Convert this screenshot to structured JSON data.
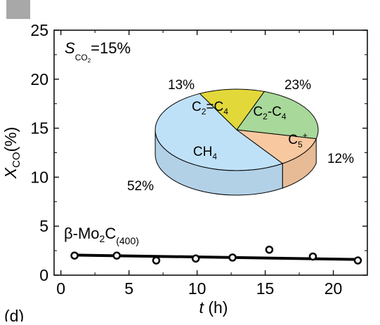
{
  "panel_label": "(d)",
  "chart_data": {
    "type": "scatter",
    "xlabel": {
      "var": "t",
      "unit": "(h)"
    },
    "ylabel": {
      "var": "X",
      "sub": "CO",
      "unit": "(%)"
    },
    "xlim": [
      -0.5,
      22.5
    ],
    "ylim": [
      0,
      25
    ],
    "xticks": [
      0,
      5,
      10,
      15,
      20
    ],
    "yticks": [
      0,
      5,
      10,
      15,
      20,
      25
    ],
    "xtick_labels": [
      "0",
      "5",
      "10",
      "15",
      "20"
    ],
    "ytick_labels": [
      "0",
      "5",
      "10",
      "15",
      "20",
      "25"
    ],
    "selectivity_label": {
      "var": "S",
      "sub": "CO",
      "sub2": "2",
      "text": "=15%"
    },
    "series": [
      {
        "name": "β-Mo₂C(400)",
        "label_parts": {
          "pre": "β-Mo",
          "sub": "2",
          "mid": "C",
          "sub2": "(400)"
        },
        "x": [
          1.0,
          4.1,
          7.0,
          9.9,
          12.6,
          15.3,
          18.5,
          21.8
        ],
        "y": [
          2.0,
          2.0,
          1.5,
          1.7,
          1.8,
          2.6,
          1.9,
          1.5
        ]
      }
    ],
    "trend_line": {
      "x": [
        1.0,
        21.8
      ],
      "y": [
        2.05,
        1.6
      ]
    },
    "inset_pie": {
      "slices": [
        {
          "name": "CH4",
          "label_parts": {
            "base": "CH",
            "sub": "4"
          },
          "value": 52,
          "pct_label": "52%",
          "color": "#bfe1f8"
        },
        {
          "name": "C2=C4",
          "label_parts": {
            "a": "C",
            "sub_a": "2",
            "eq": "=C",
            "sub_b": "4"
          },
          "value": 13,
          "pct_label": "13%",
          "color": "#e3d83a"
        },
        {
          "name": "C2-C4",
          "label_parts": {
            "a": "C",
            "sub_a": "2",
            "dash": "-C",
            "sub_b": "4"
          },
          "value": 23,
          "pct_label": "23%",
          "color": "#a8d89a"
        },
        {
          "name": "C5+",
          "label_parts": {
            "a": "C",
            "sub_a": "5",
            "sup": "+"
          },
          "value": 12,
          "pct_label": "12%",
          "color": "#f8c9a0"
        }
      ]
    }
  }
}
